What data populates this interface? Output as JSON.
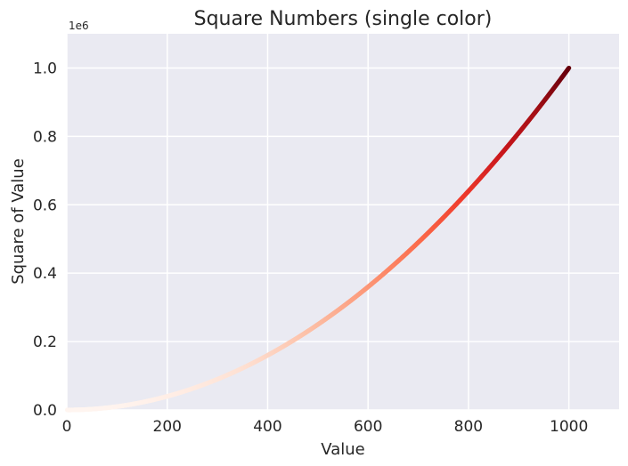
{
  "chart_data": {
    "type": "scatter",
    "title": "Square Numbers (single color)",
    "xlabel": "Value",
    "ylabel": "Square of Value",
    "y_offset_label": "1e6",
    "xlim": [
      0,
      1100
    ],
    "ylim": [
      0,
      1100000
    ],
    "x_ticks": [
      0,
      200,
      400,
      600,
      800,
      1000
    ],
    "x_tick_labels": [
      "0",
      "200",
      "400",
      "600",
      "800",
      "1000"
    ],
    "y_ticks": [
      0,
      200000,
      400000,
      600000,
      800000,
      1000000
    ],
    "y_tick_labels": [
      "0.0",
      "0.2",
      "0.4",
      "0.6",
      "0.8",
      "1.0"
    ],
    "grid": true,
    "series": [
      {
        "x_range": [
          1,
          1000
        ],
        "function": "y = x^2",
        "colormap": "Reds"
      }
    ],
    "colors": {
      "background": "#eaeaf2",
      "grid": "#ffffff",
      "colormap_stops": [
        "#fff5f0",
        "#fee0d2",
        "#fcbba1",
        "#fc9272",
        "#fb6a4a",
        "#ef3b2c",
        "#cb181d",
        "#a50f15",
        "#67000d"
      ]
    }
  }
}
